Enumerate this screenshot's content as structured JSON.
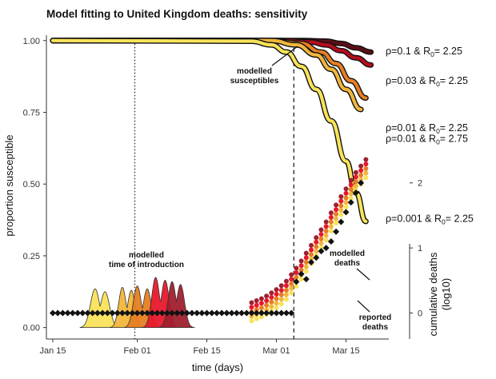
{
  "chart_data": {
    "type": "line",
    "title": "Model fitting to United Kingdom deaths: sensitivity",
    "xlabel": "time (days)",
    "ylabel": "proportion susceptible",
    "y2label": [
      "cumulative deaths",
      "(log10)"
    ],
    "xlim": [
      0,
      66
    ],
    "ylim": [
      -0.04,
      1.03
    ],
    "y2lim": [
      -0.4,
      4.32
    ],
    "x_ticks": [
      {
        "label": "Jan 15",
        "x": 0
      },
      {
        "label": "Feb 01",
        "x": 17
      },
      {
        "label": "Feb 15",
        "x": 31
      },
      {
        "label": "Mar 01",
        "x": 45
      },
      {
        "label": "Mar 15",
        "x": 59
      }
    ],
    "y_ticks": [
      {
        "label": "0.00",
        "y": 0
      },
      {
        "label": "0.25",
        "y": 0.25
      },
      {
        "label": "0.50",
        "y": 0.5
      },
      {
        "label": "0.75",
        "y": 0.75
      },
      {
        "label": "1.00",
        "y": 1.0
      }
    ],
    "y2_ticks": [
      {
        "label": "0",
        "y": 0
      },
      {
        "label": "1",
        "y": 1
      },
      {
        "label": "2",
        "y": 2
      }
    ],
    "vlines": [
      {
        "name": "introduction-line",
        "x": 16.5,
        "style": "dotted"
      },
      {
        "name": "lockdown-line",
        "x": 48.5,
        "style": "dashed"
      }
    ],
    "series": [
      {
        "name": "rho=0.1 R0=2.25",
        "color": "#5a0f16",
        "x": [
          0,
          50,
          55,
          58,
          61,
          64
        ],
        "y": [
          1.0,
          1.0,
          0.998,
          0.99,
          0.975,
          0.96
        ]
      },
      {
        "name": "rho=0.03 R0=2.25",
        "color": "#b40d1e",
        "x": [
          0,
          46,
          52,
          55,
          58,
          61,
          64
        ],
        "y": [
          1.0,
          1.0,
          0.995,
          0.985,
          0.965,
          0.94,
          0.915
        ]
      },
      {
        "name": "rho=0.01 R0=2.25",
        "color": "#e67e22",
        "x": [
          0,
          44,
          50,
          54,
          57,
          60,
          63
        ],
        "y": [
          1.0,
          1.0,
          0.99,
          0.96,
          0.92,
          0.86,
          0.8
        ]
      },
      {
        "name": "rho=0.01 R0=2.75",
        "color": "#f2b63b",
        "x": [
          0,
          44,
          49,
          53,
          56,
          59,
          62
        ],
        "y": [
          1.0,
          1.0,
          0.985,
          0.95,
          0.9,
          0.83,
          0.76
        ]
      },
      {
        "name": "rho=0.001 R0=2.25",
        "color": "#f8e35a",
        "x": [
          0,
          40,
          44,
          47,
          50,
          53,
          56,
          59,
          61,
          63
        ],
        "y": [
          1.0,
          0.998,
          0.985,
          0.96,
          0.91,
          0.83,
          0.72,
          0.58,
          0.47,
          0.37
        ]
      }
    ],
    "curve_labels": [
      {
        "name": "label-rho-0.1",
        "rho": "ρ=0.1",
        "sep": "&",
        "r": "R",
        "sub": "0",
        "value": "= 2.25",
        "y": 0.963
      },
      {
        "name": "label-rho-0.03",
        "rho": "ρ=0.03",
        "sep": "&",
        "r": "R",
        "sub": "0",
        "value": "= 2.25",
        "y": 0.86
      },
      {
        "name": "label-rho-0.01-225",
        "rho": "ρ=0.01",
        "sep": "&",
        "r": "R",
        "sub": "0",
        "value": "= 2.25",
        "y": 0.695
      },
      {
        "name": "label-rho-0.01-275",
        "rho": "ρ=0.01",
        "sep": "&",
        "r": "R",
        "sub": "0",
        "value": "= 2.75",
        "y": 0.658
      },
      {
        "name": "label-rho-0.001",
        "rho": "ρ=0.001",
        "sep": "&",
        "r": "R",
        "sub": "0",
        "value": "= 2.25",
        "y": 0.38
      }
    ],
    "introduction_densities": [
      {
        "name": "intro-density-rho-0.001",
        "color": "#f8e35a",
        "peaks": [
          {
            "x": 8.5,
            "h": 0.135
          },
          {
            "x": 10.5,
            "h": 0.125
          }
        ],
        "xmin": 5.5,
        "xmax": 13.5
      },
      {
        "name": "intro-density-rho-0.01-275",
        "color": "#f2b63b",
        "peaks": [
          {
            "x": 14,
            "h": 0.14
          },
          {
            "x": 15.8,
            "h": 0.13
          }
        ],
        "xmin": 11.5,
        "xmax": 18
      },
      {
        "name": "intro-density-rho-0.01-225",
        "color": "#e67e22",
        "peaks": [
          {
            "x": 17,
            "h": 0.145
          },
          {
            "x": 19,
            "h": 0.135
          }
        ],
        "xmin": 14.5,
        "xmax": 21.5
      },
      {
        "name": "intro-density-rho-0.03",
        "color": "#e8182b",
        "peaks": [
          {
            "x": 20.7,
            "h": 0.175
          },
          {
            "x": 22.6,
            "h": 0.165
          }
        ],
        "xmin": 18,
        "xmax": 25
      },
      {
        "name": "intro-density-rho-0.1",
        "color": "#a0202e",
        "peaks": [
          {
            "x": 24,
            "h": 0.16
          },
          {
            "x": 25.7,
            "h": 0.15
          }
        ],
        "xmin": 21.5,
        "xmax": 28.5
      }
    ],
    "reported_deaths_points": {
      "color": "#111111",
      "x": [
        0,
        1,
        2,
        3,
        4,
        5,
        6,
        7,
        8,
        9,
        10,
        11,
        12,
        13,
        14,
        15,
        16,
        17,
        18,
        19,
        20,
        21,
        22,
        23,
        24,
        25,
        26,
        27,
        28,
        29,
        30,
        31,
        32,
        33,
        34,
        35,
        36,
        37,
        38,
        39,
        40,
        41,
        42,
        43,
        44,
        45,
        46,
        47,
        48,
        49,
        50,
        51,
        52,
        53,
        54,
        55,
        56,
        57,
        58,
        59,
        60,
        61,
        62
      ],
      "y": [
        0,
        0,
        0,
        0,
        0,
        0,
        0,
        0,
        0,
        0,
        0,
        0,
        0,
        0,
        0,
        0,
        0,
        0,
        0,
        0,
        0,
        0,
        0,
        0,
        0,
        0,
        0,
        0,
        0,
        0,
        0,
        0,
        0,
        0,
        0,
        0,
        0,
        0,
        0,
        0,
        0,
        0,
        0,
        0,
        0,
        0,
        0,
        0,
        0,
        0.48,
        0.6,
        0.52,
        0.78,
        0.85,
        0.95,
        1.0,
        1.1,
        1.25,
        1.4,
        1.55,
        1.7,
        1.85,
        2.0
      ]
    },
    "modelled_deaths_points": {
      "colors": [
        "#f8e35a",
        "#f2b63b",
        "#e67e22",
        "#e8182b",
        "#a0202e"
      ],
      "x": [
        40,
        41,
        42,
        43,
        44,
        45,
        46,
        47,
        48,
        49,
        50,
        51,
        52,
        53,
        54,
        55,
        56,
        57,
        58,
        59,
        60,
        61,
        62,
        63
      ],
      "y": [
        0.02,
        0.05,
        0.08,
        0.12,
        0.17,
        0.22,
        0.28,
        0.35,
        0.45,
        0.55,
        0.66,
        0.78,
        0.9,
        1.02,
        1.14,
        1.26,
        1.4,
        1.52,
        1.65,
        1.77,
        1.9,
        2.02,
        2.12,
        2.22
      ]
    },
    "annotations": {
      "modelled_susceptibles": [
        "modelled",
        "susceptibles"
      ],
      "modelled_time_of_introduction": [
        "modelled",
        "time of introduction"
      ],
      "modelled_deaths": [
        "modelled",
        "deaths"
      ],
      "reported_deaths": [
        "reported",
        "deaths"
      ]
    }
  }
}
